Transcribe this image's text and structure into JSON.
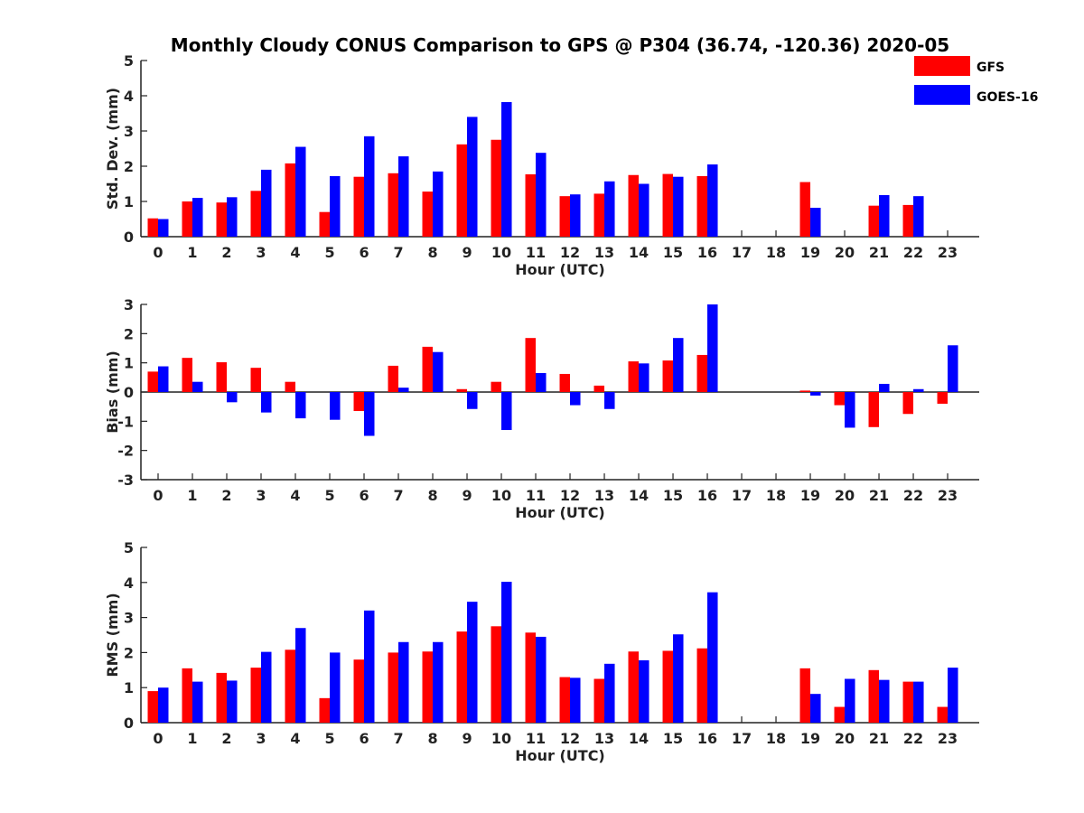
{
  "title": "Monthly Cloudy CONUS Comparison to GPS @ P304 (36.74, -120.36) 2020-05",
  "legend": {
    "placement": "top-right",
    "items": [
      {
        "label": "GFS",
        "color": "#ff0000"
      },
      {
        "label": "GOES-16",
        "color": "#0000ff"
      }
    ]
  },
  "chart_data": [
    {
      "type": "bar",
      "xlabel": "Hour (UTC)",
      "ylabel": "Std. Dev. (mm)",
      "ylim": [
        0,
        5
      ],
      "yticks": [
        0,
        1,
        2,
        3,
        4,
        5
      ],
      "categories": [
        "0",
        "1",
        "2",
        "3",
        "4",
        "5",
        "6",
        "7",
        "8",
        "9",
        "10",
        "11",
        "12",
        "13",
        "14",
        "15",
        "16",
        "17",
        "18",
        "19",
        "20",
        "21",
        "22",
        "23"
      ],
      "series": [
        {
          "name": "GFS",
          "color": "#ff0000",
          "values": [
            0.52,
            1.0,
            0.97,
            1.3,
            2.08,
            0.7,
            1.7,
            1.8,
            1.28,
            2.62,
            2.75,
            1.77,
            1.15,
            1.22,
            1.75,
            1.78,
            1.72,
            null,
            null,
            1.55,
            null,
            0.88,
            0.9,
            null
          ]
        },
        {
          "name": "GOES-16",
          "color": "#0000ff",
          "values": [
            0.5,
            1.1,
            1.12,
            1.9,
            2.55,
            1.72,
            2.85,
            2.28,
            1.85,
            3.4,
            3.82,
            2.38,
            1.2,
            1.57,
            1.5,
            1.7,
            2.05,
            null,
            null,
            0.82,
            null,
            1.18,
            1.15,
            null
          ]
        }
      ]
    },
    {
      "type": "bar",
      "xlabel": "Hour (UTC)",
      "ylabel": "Bias (mm)",
      "ylim": [
        -3,
        3
      ],
      "yticks": [
        -3,
        -2,
        -1,
        0,
        1,
        2,
        3
      ],
      "categories": [
        "0",
        "1",
        "2",
        "3",
        "4",
        "5",
        "6",
        "7",
        "8",
        "9",
        "10",
        "11",
        "12",
        "13",
        "14",
        "15",
        "16",
        "17",
        "18",
        "19",
        "20",
        "21",
        "22",
        "23"
      ],
      "series": [
        {
          "name": "GFS",
          "color": "#ff0000",
          "values": [
            0.7,
            1.17,
            1.02,
            0.83,
            0.35,
            0.0,
            -0.65,
            0.9,
            1.55,
            0.1,
            0.35,
            1.85,
            0.62,
            0.22,
            1.05,
            1.08,
            1.27,
            null,
            null,
            0.05,
            -0.45,
            -1.2,
            -0.75,
            -0.4
          ]
        },
        {
          "name": "GOES-16",
          "color": "#0000ff",
          "values": [
            0.88,
            0.35,
            -0.35,
            -0.7,
            -0.9,
            -0.95,
            -1.5,
            0.15,
            1.37,
            -0.58,
            -1.3,
            0.65,
            -0.45,
            -0.58,
            0.98,
            1.85,
            3.0,
            null,
            null,
            -0.12,
            -1.22,
            0.28,
            0.1,
            1.6
          ]
        }
      ]
    },
    {
      "type": "bar",
      "xlabel": "Hour (UTC)",
      "ylabel": "RMS (mm)",
      "ylim": [
        0,
        5
      ],
      "yticks": [
        0,
        1,
        2,
        3,
        4,
        5
      ],
      "categories": [
        "0",
        "1",
        "2",
        "3",
        "4",
        "5",
        "6",
        "7",
        "8",
        "9",
        "10",
        "11",
        "12",
        "13",
        "14",
        "15",
        "16",
        "17",
        "18",
        "19",
        "20",
        "21",
        "22",
        "23"
      ],
      "series": [
        {
          "name": "GFS",
          "color": "#ff0000",
          "values": [
            0.9,
            1.55,
            1.42,
            1.57,
            2.08,
            0.7,
            1.8,
            2.0,
            2.03,
            2.6,
            2.75,
            2.57,
            1.3,
            1.25,
            2.03,
            2.05,
            2.12,
            null,
            null,
            1.55,
            0.45,
            1.5,
            1.17,
            0.45
          ]
        },
        {
          "name": "GOES-16",
          "color": "#0000ff",
          "values": [
            1.0,
            1.17,
            1.2,
            2.02,
            2.7,
            2.0,
            3.2,
            2.3,
            2.3,
            3.45,
            4.02,
            2.45,
            1.28,
            1.68,
            1.78,
            2.52,
            3.72,
            null,
            null,
            0.82,
            1.25,
            1.22,
            1.17,
            1.57
          ]
        }
      ]
    }
  ]
}
